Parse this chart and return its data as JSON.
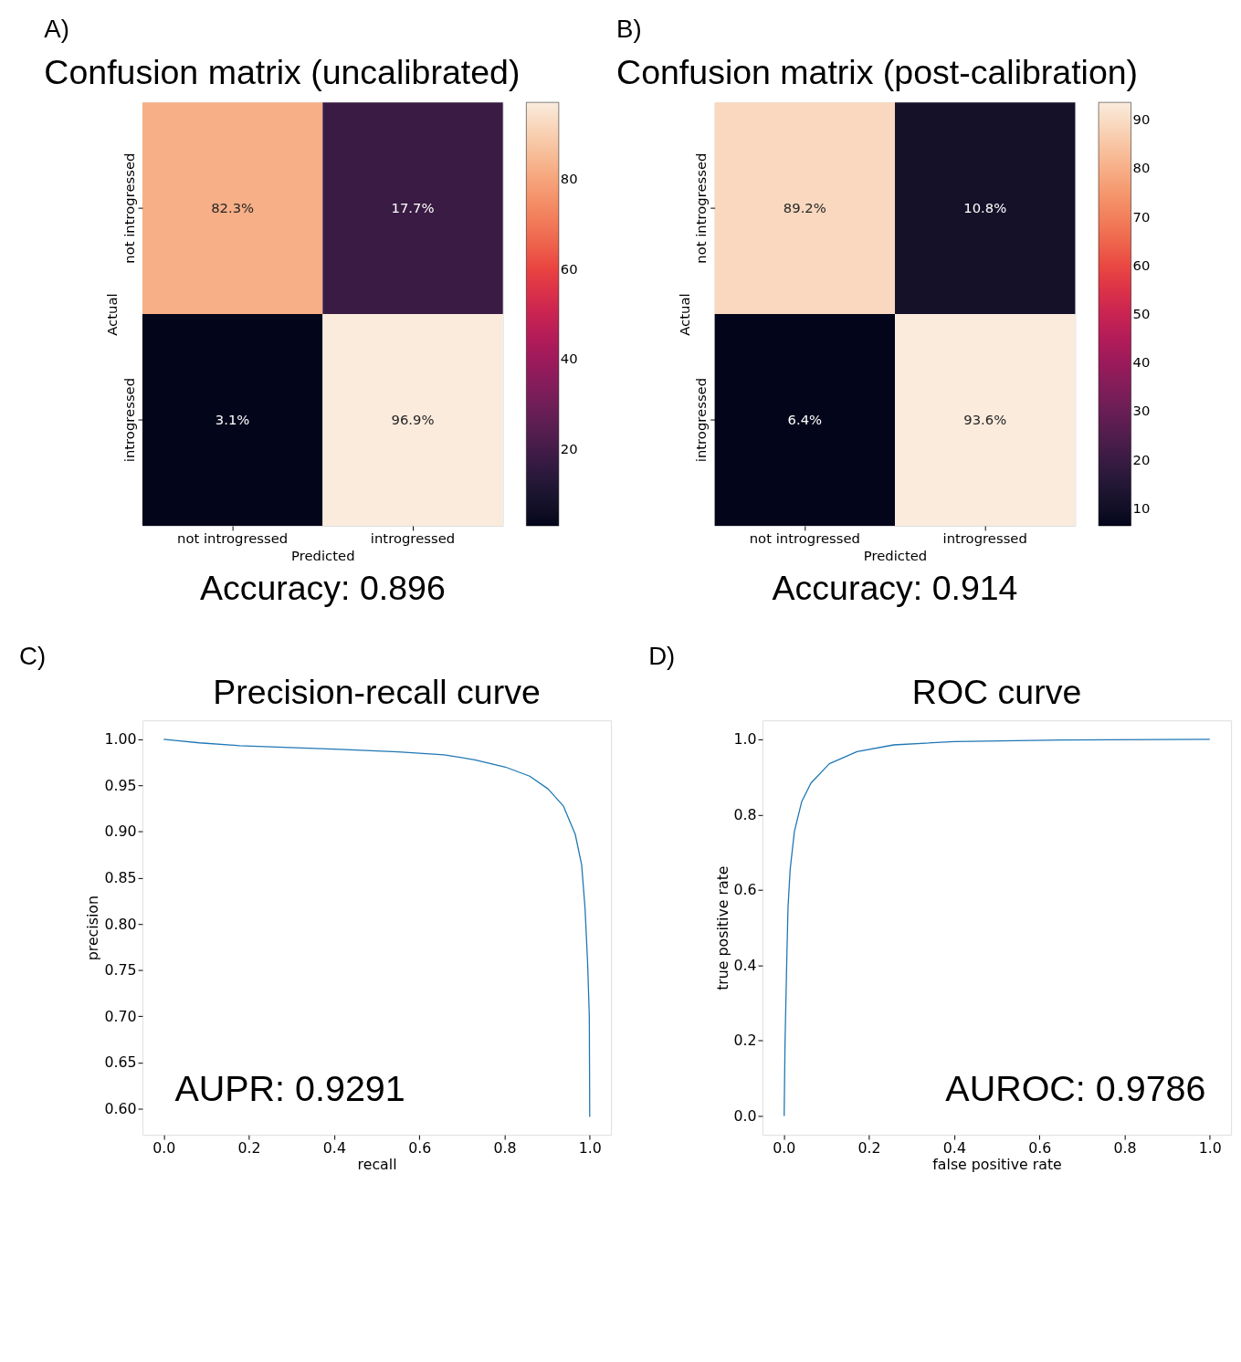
{
  "chart_data": [
    {
      "type": "heatmap",
      "title": "Confusion matrix (uncalibrated)",
      "xlabel": "Predicted",
      "ylabel": "Actual",
      "categories": [
        "not introgressed",
        "introgressed"
      ],
      "y_categories": [
        "not introgressed",
        "introgressed"
      ],
      "cells": [
        [
          82.3,
          17.7
        ],
        [
          3.1,
          96.9
        ]
      ],
      "cell_labels": [
        [
          "82.3%",
          "17.7%"
        ],
        [
          "3.1%",
          "96.9%"
        ]
      ],
      "clim": [
        3.1,
        96.9
      ],
      "cticks": [
        20,
        40,
        60,
        80
      ],
      "annotations": [
        "A)",
        "Accuracy: 0.896"
      ]
    },
    {
      "type": "heatmap",
      "title": "Confusion matrix (post-calibration)",
      "xlabel": "Predicted",
      "ylabel": "Actual",
      "categories": [
        "not introgressed",
        "introgressed"
      ],
      "y_categories": [
        "not introgressed",
        "introgressed"
      ],
      "cells": [
        [
          89.2,
          10.8
        ],
        [
          6.4,
          93.6
        ]
      ],
      "cell_labels": [
        [
          "89.2%",
          "10.8%"
        ],
        [
          "6.4%",
          "93.6%"
        ]
      ],
      "clim": [
        6.4,
        93.6
      ],
      "cticks": [
        10,
        20,
        30,
        40,
        50,
        60,
        70,
        80,
        90
      ],
      "annotations": [
        "B)",
        "Accuracy: 0.914"
      ]
    },
    {
      "type": "line",
      "title": "Precision-recall curve",
      "xlabel": "recall",
      "ylabel": "precision",
      "xlim": [
        -0.05,
        1.05
      ],
      "ylim": [
        0.5716,
        1.0204
      ],
      "xticks": [
        {
          "value": 0,
          "label": "0.0"
        },
        {
          "value": 0.2,
          "label": "0.2"
        },
        {
          "value": 0.4,
          "label": "0.4"
        },
        {
          "value": 0.6,
          "label": "0.6"
        },
        {
          "value": 0.8,
          "label": "0.8"
        },
        {
          "value": 1,
          "label": "1.0"
        }
      ],
      "yticks": [
        {
          "value": 0.6,
          "label": "0.60"
        },
        {
          "value": 0.65,
          "label": "0.65"
        },
        {
          "value": 0.7,
          "label": "0.70"
        },
        {
          "value": 0.75,
          "label": "0.75"
        },
        {
          "value": 0.8,
          "label": "0.80"
        },
        {
          "value": 0.85,
          "label": "0.85"
        },
        {
          "value": 0.9,
          "label": "0.90"
        },
        {
          "value": 0.95,
          "label": "0.95"
        },
        {
          "value": 1,
          "label": "1.00"
        }
      ],
      "series": [
        {
          "color": "#1f77b4",
          "x": [
            0.0,
            0.027,
            0.084,
            0.178,
            0.414,
            0.55,
            0.658,
            0.73,
            0.802,
            0.859,
            0.902,
            0.938,
            0.966,
            0.981,
            0.989,
            0.995,
            0.999,
            1.0
          ],
          "values": [
            1.0,
            0.9988,
            0.9961,
            0.9931,
            0.989,
            0.9864,
            0.9832,
            0.9778,
            0.9699,
            0.96,
            0.9463,
            0.9278,
            0.897,
            0.864,
            0.817,
            0.758,
            0.7,
            0.591
          ]
        }
      ],
      "annotations": [
        "C)",
        "AUPR: 0.9291"
      ]
    },
    {
      "type": "line",
      "title": "ROC curve",
      "xlabel": "false positive rate",
      "ylabel": "true positive rate",
      "xlim": [
        -0.05,
        1.05
      ],
      "ylim": [
        -0.05,
        1.05
      ],
      "xticks": [
        {
          "value": 0,
          "label": "0.0"
        },
        {
          "value": 0.2,
          "label": "0.2"
        },
        {
          "value": 0.4,
          "label": "0.4"
        },
        {
          "value": 0.6,
          "label": "0.6"
        },
        {
          "value": 0.8,
          "label": "0.8"
        },
        {
          "value": 1,
          "label": "1.0"
        }
      ],
      "yticks": [
        {
          "value": 0,
          "label": "0.0"
        },
        {
          "value": 0.2,
          "label": "0.2"
        },
        {
          "value": 0.4,
          "label": "0.4"
        },
        {
          "value": 0.6,
          "label": "0.6"
        },
        {
          "value": 0.8,
          "label": "0.8"
        },
        {
          "value": 1,
          "label": "1.0"
        }
      ],
      "series": [
        {
          "color": "#1f77b4",
          "x": [
            0.001,
            0.003,
            0.007,
            0.01,
            0.015,
            0.025,
            0.042,
            0.064,
            0.107,
            0.172,
            0.258,
            0.401,
            0.652,
            1.0
          ],
          "values": [
            0.0,
            0.192,
            0.408,
            0.553,
            0.654,
            0.755,
            0.834,
            0.884,
            0.935,
            0.967,
            0.985,
            0.994,
            0.998,
            1.0
          ]
        }
      ],
      "annotations": [
        "D)",
        "AUROC: 0.9786"
      ]
    }
  ]
}
